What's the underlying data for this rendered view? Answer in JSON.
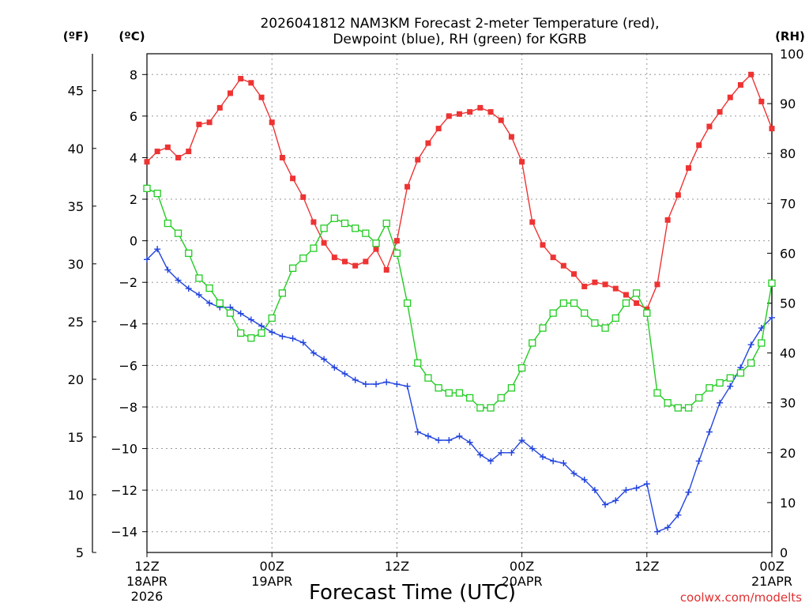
{
  "chart_data": {
    "type": "line",
    "title_line1": "2026041812 NAM3KM Forecast 2-meter Temperature (red),",
    "title_line2": "Dewpoint (blue), RH (green) for KGRB",
    "xlabel": "Forecast Time (UTC)",
    "watermark": "coolwx.com/modelts",
    "left_unit_f": "(ºF)",
    "left_unit_c": "(ºC)",
    "right_unit": "(RH)",
    "x_range_hours": [
      0,
      60
    ],
    "ylim_c": [
      -15,
      9
    ],
    "ylim_rh": [
      0,
      100
    ],
    "ylim_f": [
      5,
      48.2
    ],
    "ticks_c": [
      "8",
      "6",
      "4",
      "2",
      "0",
      "−2",
      "−4",
      "−6",
      "−8",
      "−10",
      "−12",
      "−14"
    ],
    "ticks_c_values": [
      8,
      6,
      4,
      2,
      0,
      -2,
      -4,
      -6,
      -8,
      -10,
      -12,
      -14
    ],
    "ticks_f": [
      "45",
      "40",
      "35",
      "30",
      "25",
      "20",
      "15",
      "10",
      "5"
    ],
    "ticks_f_values": [
      45,
      40,
      35,
      30,
      25,
      20,
      15,
      10,
      5
    ],
    "ticks_rh": [
      "100",
      "90",
      "80",
      "70",
      "60",
      "50",
      "40",
      "30",
      "20",
      "10",
      "0"
    ],
    "ticks_rh_values": [
      100,
      90,
      80,
      70,
      60,
      50,
      40,
      30,
      20,
      10,
      0
    ],
    "x_ticks": [
      {
        "hour": 0,
        "l1": "12Z",
        "l2": "18APR",
        "l3": "2026"
      },
      {
        "hour": 12,
        "l1": "00Z",
        "l2": "19APR",
        "l3": ""
      },
      {
        "hour": 24,
        "l1": "12Z",
        "l2": "",
        "l3": ""
      },
      {
        "hour": 36,
        "l1": "00Z",
        "l2": "20APR",
        "l3": ""
      },
      {
        "hour": 48,
        "l1": "12Z",
        "l2": "",
        "l3": ""
      },
      {
        "hour": 60,
        "l1": "00Z",
        "l2": "21APR",
        "l3": ""
      }
    ],
    "series": [
      {
        "name": "Temperature",
        "units": "C",
        "color": "#ee3333",
        "marker": "filled-square",
        "hours": [
          0,
          1,
          2,
          3,
          4,
          5,
          6,
          7,
          8,
          9,
          10,
          11,
          12,
          13,
          14,
          15,
          16,
          17,
          18,
          19,
          20,
          21,
          22,
          23,
          24,
          25,
          26,
          27,
          28,
          29,
          30,
          31,
          32,
          33,
          34,
          35,
          36,
          37,
          38,
          39,
          40,
          41,
          42,
          43,
          44,
          45,
          46,
          47,
          48,
          49,
          50,
          51,
          52,
          53,
          54,
          55,
          56,
          57,
          58,
          59,
          60
        ],
        "values": [
          3.8,
          4.3,
          4.5,
          4.0,
          4.3,
          5.6,
          5.7,
          6.4,
          7.1,
          7.8,
          7.6,
          6.9,
          5.7,
          4.0,
          3.0,
          2.1,
          0.9,
          -0.1,
          -0.8,
          -1.0,
          -1.2,
          -1.0,
          -0.4,
          -1.4,
          0.0,
          2.6,
          3.9,
          4.7,
          5.4,
          6.0,
          6.1,
          6.2,
          6.4,
          6.2,
          5.8,
          5.0,
          3.8,
          0.9,
          -0.2,
          -0.8,
          -1.2,
          -1.6,
          -2.2,
          -2.0,
          -2.1,
          -2.3,
          -2.6,
          -3.0,
          -3.3,
          -2.1,
          1.0,
          2.2,
          3.5,
          4.6,
          5.5,
          6.2,
          6.9,
          7.5,
          8.0,
          6.7,
          5.4
        ]
      },
      {
        "name": "Dewpoint",
        "units": "C",
        "color": "#2244dd",
        "marker": "plus",
        "hours": [
          0,
          1,
          2,
          3,
          4,
          5,
          6,
          7,
          8,
          9,
          10,
          11,
          12,
          13,
          14,
          15,
          16,
          17,
          18,
          19,
          20,
          21,
          22,
          23,
          24,
          25,
          26,
          27,
          28,
          29,
          30,
          31,
          32,
          33,
          34,
          35,
          36,
          37,
          38,
          39,
          40,
          41,
          42,
          43,
          44,
          45,
          46,
          47,
          48,
          49,
          50,
          51,
          52,
          53,
          54,
          55,
          56,
          57,
          58,
          59,
          60
        ],
        "values": [
          -0.9,
          -0.4,
          -1.4,
          -1.9,
          -2.3,
          -2.6,
          -3.0,
          -3.2,
          -3.2,
          -3.5,
          -3.8,
          -4.1,
          -4.4,
          -4.6,
          -4.7,
          -4.9,
          -5.4,
          -5.7,
          -6.1,
          -6.4,
          -6.7,
          -6.9,
          -6.9,
          -6.8,
          -6.9,
          -7.0,
          -9.2,
          -9.4,
          -9.6,
          -9.6,
          -9.4,
          -9.7,
          -10.3,
          -10.6,
          -10.2,
          -10.2,
          -9.6,
          -10.0,
          -10.4,
          -10.6,
          -10.7,
          -11.2,
          -11.5,
          -12.0,
          -12.7,
          -12.5,
          -12.0,
          -11.9,
          -11.7,
          -14.0,
          -13.8,
          -13.2,
          -12.1,
          -10.6,
          -9.2,
          -7.8,
          -7.0,
          -6.1,
          -5.0,
          -4.2,
          -3.7
        ]
      },
      {
        "name": "RH",
        "units": "%",
        "color": "#22cc22",
        "marker": "open-square",
        "hours": [
          0,
          1,
          2,
          3,
          4,
          5,
          6,
          7,
          8,
          9,
          10,
          11,
          12,
          13,
          14,
          15,
          16,
          17,
          18,
          19,
          20,
          21,
          22,
          23,
          24,
          25,
          26,
          27,
          28,
          29,
          30,
          31,
          32,
          33,
          34,
          35,
          36,
          37,
          38,
          39,
          40,
          41,
          42,
          43,
          44,
          45,
          46,
          47,
          48,
          49,
          50,
          51,
          52,
          53,
          54,
          55,
          56,
          57,
          58,
          59,
          60
        ],
        "values": [
          73,
          72,
          66,
          64,
          60,
          55,
          53,
          50,
          48,
          44,
          43,
          44,
          47,
          52,
          57,
          59,
          61,
          65,
          67,
          66,
          65,
          64,
          62,
          66,
          60,
          50,
          38,
          35,
          33,
          32,
          32,
          31,
          29,
          29,
          31,
          33,
          37,
          42,
          45,
          48,
          50,
          50,
          48,
          46,
          45,
          47,
          50,
          52,
          48,
          32,
          30,
          29,
          29,
          31,
          33,
          34,
          35,
          36,
          38,
          42,
          54
        ]
      }
    ]
  }
}
